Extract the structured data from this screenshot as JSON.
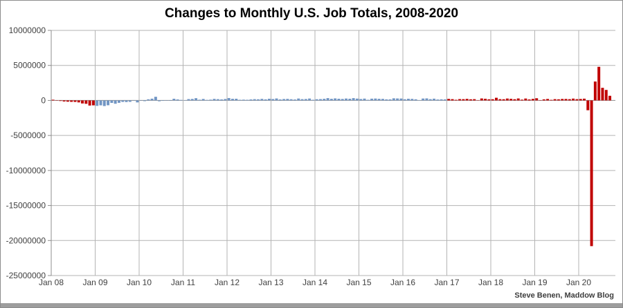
{
  "header": {
    "title": "Changes to Monthly U.S. Job Totals, 2008-2020"
  },
  "footer": {
    "credit": "Steve Benen, Maddow Blog"
  },
  "colors": {
    "bar_red": "#c00000",
    "bar_blue": "#7296c4",
    "gridline": "#b3b3b3",
    "zero_line": "#8c8c8c",
    "axis_line": "#8c8c8c",
    "tick_label": "#404040",
    "title_text": "#000000",
    "credit_text": "#3d3d3d",
    "footer_strip": "#9d9d9d",
    "border": "#8c8c8c"
  },
  "chart_data": {
    "type": "bar",
    "title": "Changes to Monthly U.S. Job Totals, 2008-2020",
    "xlabel": "",
    "ylabel": "",
    "x_start_month": "Jan 2008",
    "x_end_month": "Sep 2020",
    "x_tick_labels": [
      "Jan 08",
      "Jan 09",
      "Jan 10",
      "Jan 11",
      "Jan 12",
      "Jan 13",
      "Jan 14",
      "Jan 15",
      "Jan 16",
      "Jan 17",
      "Jan 18",
      "Jan 19",
      "Jan 20"
    ],
    "ylim": [
      -25000000,
      10000000
    ],
    "yticks": [
      10000000,
      5000000,
      0,
      -5000000,
      -10000000,
      -15000000,
      -20000000,
      -25000000
    ],
    "ytick_labels": [
      "10000000",
      "5000000",
      "0",
      "-5000000",
      "-10000000",
      "-15000000",
      "-20000000",
      "-25000000"
    ],
    "grid": true,
    "legend": "none",
    "values_unit": "thousands_of_jobs",
    "values": [
      100,
      -20,
      -80,
      -150,
      -180,
      -200,
      -210,
      -280,
      -430,
      -480,
      -730,
      -700,
      -780,
      -700,
      -800,
      -690,
      -350,
      -470,
      -340,
      -210,
      -230,
      -200,
      -10,
      -280,
      -40,
      -100,
      160,
      250,
      520,
      -120,
      -60,
      -40,
      -50,
      240,
      140,
      70,
      40,
      190,
      210,
      320,
      100,
      210,
      70,
      110,
      220,
      180,
      140,
      200,
      340,
      230,
      240,
      90,
      110,
      90,
      140,
      180,
      160,
      220,
      150,
      240,
      200,
      280,
      140,
      200,
      220,
      170,
      130,
      270,
      180,
      200,
      270,
      90,
      170,
      190,
      230,
      330,
      230,
      290,
      240,
      210,
      270,
      240,
      330,
      260,
      200,
      260,
      90,
      250,
      270,
      230,
      220,
      150,
      150,
      300,
      280,
      270,
      170,
      240,
      220,
      160,
      40,
      270,
      290,
      180,
      250,
      130,
      160,
      150,
      220,
      180,
      90,
      190,
      180,
      220,
      160,
      180,
      40,
      280,
      240,
      160,
      170,
      380,
      180,
      170,
      270,
      230,
      170,
      280,
      110,
      270,
      140,
      220,
      310,
      10,
      150,
      210,
      80,
      180,
      160,
      210,
      210,
      180,
      260,
      180,
      210,
      250,
      -1400,
      -20800,
      2700,
      4800,
      1800,
      1500,
      660
    ],
    "color_segments": [
      {
        "start_index": 0,
        "end_index": 11,
        "color": "#c00000",
        "name": "red-bars-2008"
      },
      {
        "start_index": 12,
        "end_index": 107,
        "color": "#7296c4",
        "name": "blue-bars-2009-2016"
      },
      {
        "start_index": 108,
        "end_index": 152,
        "color": "#c00000",
        "name": "red-bars-2017-2020"
      }
    ],
    "notable_points": {
      "largest_loss": {
        "month": "Apr 2020",
        "value_thousands": -20800
      },
      "largest_gain": {
        "month": "Jun 2020",
        "value_thousands": 4800
      }
    }
  }
}
